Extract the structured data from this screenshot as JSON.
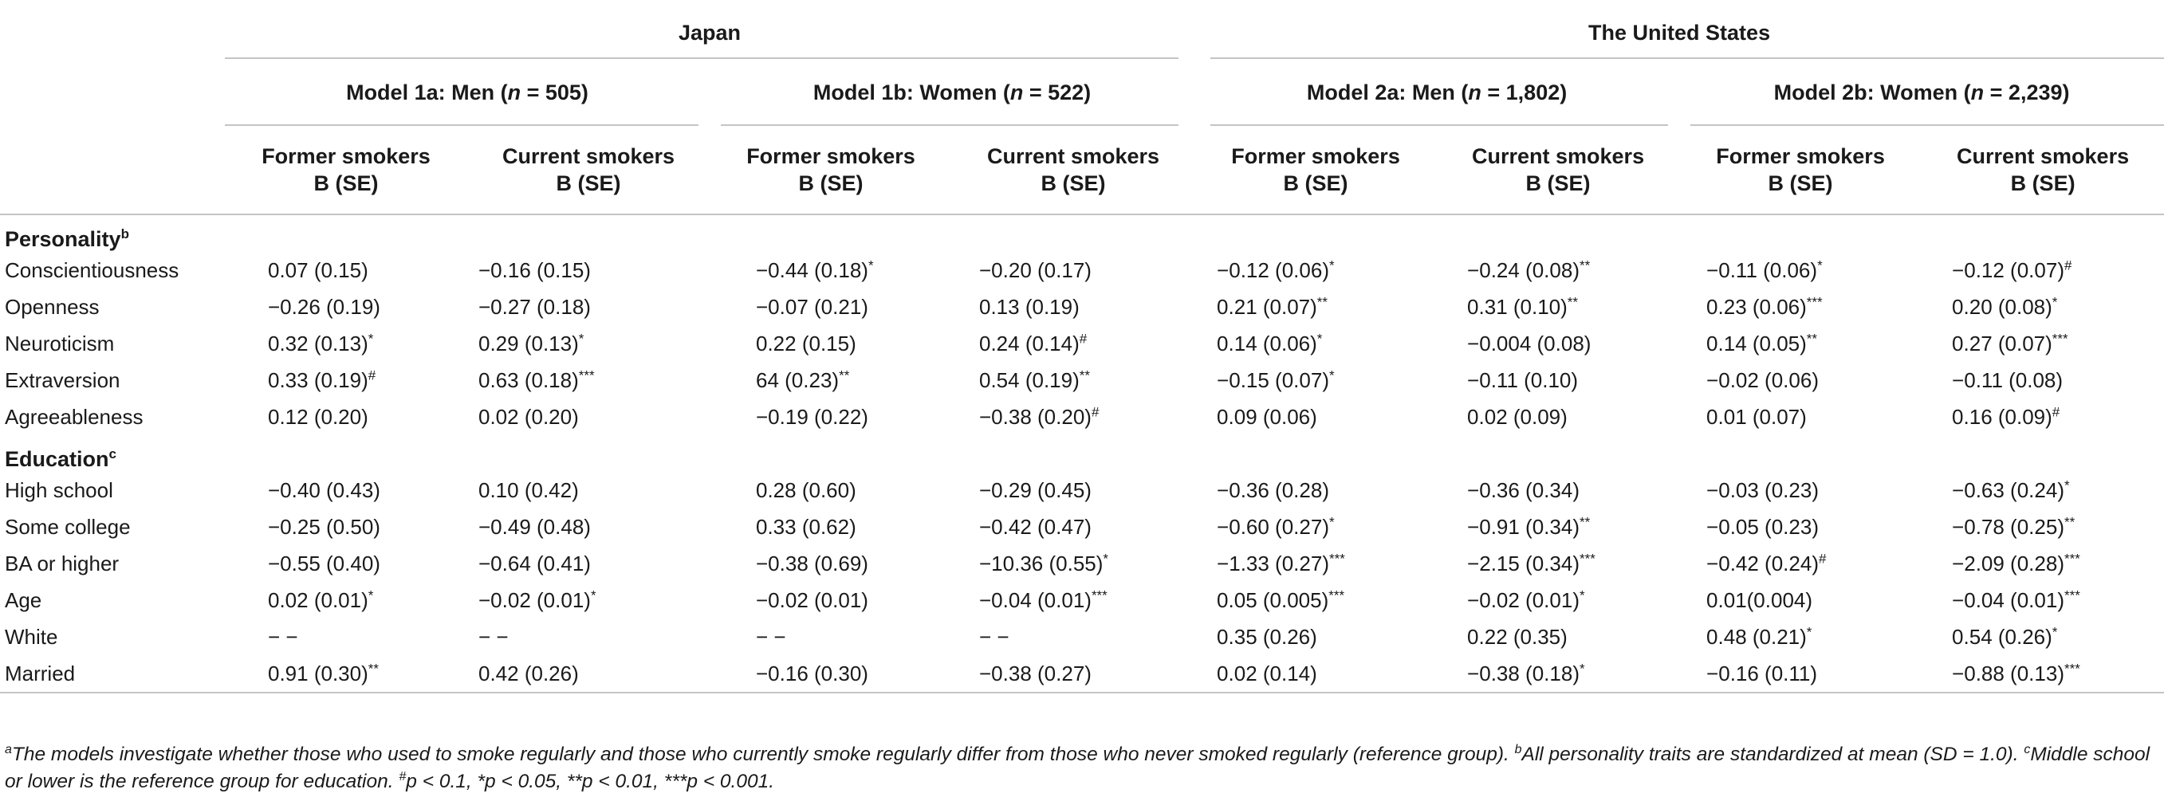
{
  "countries": [
    "Japan",
    "The United States"
  ],
  "models": [
    {
      "prefix": "Model 1a: Men (",
      "n_label": "n",
      "n_value": " = 505)"
    },
    {
      "prefix": "Model 1b: Women (",
      "n_label": "n",
      "n_value": " = 522)"
    },
    {
      "prefix": "Model 2a: Men (",
      "n_label": "n",
      "n_value": " = 1,802)"
    },
    {
      "prefix": "Model 2b: Women (",
      "n_label": "n",
      "n_value": " = 2,239)"
    }
  ],
  "column_headers": {
    "former": "Former smokers",
    "current": "Current smokers",
    "stat": "B (SE)"
  },
  "sections": [
    {
      "title": "Personality",
      "sup": "b",
      "rows": [
        {
          "label": "Conscientiousness",
          "values": [
            {
              "v": "0.07 (0.15)",
              "s": ""
            },
            {
              "v": "−0.16 (0.15)",
              "s": ""
            },
            {
              "v": "−0.44 (0.18)",
              "s": "*"
            },
            {
              "v": "−0.20 (0.17)",
              "s": ""
            },
            {
              "v": "−0.12 (0.06)",
              "s": "*"
            },
            {
              "v": "−0.24 (0.08)",
              "s": "**"
            },
            {
              "v": "−0.11 (0.06)",
              "s": "*"
            },
            {
              "v": "−0.12 (0.07)",
              "s": "#"
            }
          ]
        },
        {
          "label": "Openness",
          "values": [
            {
              "v": "−0.26 (0.19)",
              "s": ""
            },
            {
              "v": "−0.27 (0.18)",
              "s": ""
            },
            {
              "v": "−0.07 (0.21)",
              "s": ""
            },
            {
              "v": "0.13 (0.19)",
              "s": ""
            },
            {
              "v": "0.21 (0.07)",
              "s": "**"
            },
            {
              "v": "0.31 (0.10)",
              "s": "**"
            },
            {
              "v": "0.23 (0.06)",
              "s": "***"
            },
            {
              "v": "0.20 (0.08)",
              "s": "*"
            }
          ]
        },
        {
          "label": "Neuroticism",
          "values": [
            {
              "v": "0.32 (0.13)",
              "s": "*"
            },
            {
              "v": "0.29 (0.13)",
              "s": "*"
            },
            {
              "v": "0.22 (0.15)",
              "s": ""
            },
            {
              "v": "0.24 (0.14)",
              "s": "#"
            },
            {
              "v": "0.14 (0.06)",
              "s": "*"
            },
            {
              "v": "−0.004 (0.08)",
              "s": ""
            },
            {
              "v": "0.14 (0.05)",
              "s": "**"
            },
            {
              "v": "0.27 (0.07)",
              "s": "***"
            }
          ]
        },
        {
          "label": "Extraversion",
          "values": [
            {
              "v": "0.33 (0.19)",
              "s": "#"
            },
            {
              "v": "0.63 (0.18)",
              "s": "***"
            },
            {
              "v": "64 (0.23)",
              "s": "**"
            },
            {
              "v": "0.54 (0.19)",
              "s": "**"
            },
            {
              "v": "−0.15 (0.07)",
              "s": "*"
            },
            {
              "v": "−0.11 (0.10)",
              "s": ""
            },
            {
              "v": "−0.02 (0.06)",
              "s": ""
            },
            {
              "v": "−0.11 (0.08)",
              "s": ""
            }
          ]
        },
        {
          "label": "Agreeableness",
          "values": [
            {
              "v": "0.12 (0.20)",
              "s": ""
            },
            {
              "v": "0.02 (0.20)",
              "s": ""
            },
            {
              "v": "−0.19 (0.22)",
              "s": ""
            },
            {
              "v": "−0.38 (0.20)",
              "s": "#"
            },
            {
              "v": "0.09 (0.06)",
              "s": ""
            },
            {
              "v": "0.02 (0.09)",
              "s": ""
            },
            {
              "v": "0.01 (0.07)",
              "s": ""
            },
            {
              "v": "0.16 (0.09)",
              "s": "#"
            }
          ]
        }
      ]
    },
    {
      "title": "Education",
      "sup": "c",
      "rows": [
        {
          "label": "High school",
          "values": [
            {
              "v": "−0.40 (0.43)",
              "s": ""
            },
            {
              "v": "0.10 (0.42)",
              "s": ""
            },
            {
              "v": "0.28 (0.60)",
              "s": ""
            },
            {
              "v": "−0.29 (0.45)",
              "s": ""
            },
            {
              "v": "−0.36 (0.28)",
              "s": ""
            },
            {
              "v": "−0.36 (0.34)",
              "s": ""
            },
            {
              "v": "−0.03 (0.23)",
              "s": ""
            },
            {
              "v": "−0.63 (0.24)",
              "s": "*"
            }
          ]
        },
        {
          "label": "Some college",
          "values": [
            {
              "v": "−0.25 (0.50)",
              "s": ""
            },
            {
              "v": "−0.49 (0.48)",
              "s": ""
            },
            {
              "v": "0.33 (0.62)",
              "s": ""
            },
            {
              "v": "−0.42 (0.47)",
              "s": ""
            },
            {
              "v": "−0.60 (0.27)",
              "s": "*"
            },
            {
              "v": "−0.91 (0.34)",
              "s": "**"
            },
            {
              "v": "−0.05 (0.23)",
              "s": ""
            },
            {
              "v": "−0.78 (0.25)",
              "s": "**"
            }
          ]
        },
        {
          "label": "BA or higher",
          "values": [
            {
              "v": "−0.55 (0.40)",
              "s": ""
            },
            {
              "v": "−0.64 (0.41)",
              "s": ""
            },
            {
              "v": "−0.38 (0.69)",
              "s": ""
            },
            {
              "v": "−10.36 (0.55)",
              "s": "*"
            },
            {
              "v": "−1.33 (0.27)",
              "s": "***"
            },
            {
              "v": "−2.15 (0.34)",
              "s": "***"
            },
            {
              "v": "−0.42 (0.24)",
              "s": "#"
            },
            {
              "v": "−2.09 (0.28)",
              "s": "***"
            }
          ]
        },
        {
          "label": "Age",
          "values": [
            {
              "v": "0.02 (0.01)",
              "s": "*"
            },
            {
              "v": "−0.02 (0.01)",
              "s": "*"
            },
            {
              "v": "−0.02 (0.01)",
              "s": ""
            },
            {
              "v": "−0.04 (0.01)",
              "s": "***"
            },
            {
              "v": "0.05 (0.005)",
              "s": "***"
            },
            {
              "v": "−0.02 (0.01)",
              "s": "*"
            },
            {
              "v": "0.01(0.004)",
              "s": ""
            },
            {
              "v": "−0.04 (0.01)",
              "s": "***"
            }
          ]
        },
        {
          "label": "White",
          "values": [
            {
              "v": "− −",
              "s": ""
            },
            {
              "v": "− −",
              "s": ""
            },
            {
              "v": "− −",
              "s": ""
            },
            {
              "v": "− −",
              "s": ""
            },
            {
              "v": "0.35 (0.26)",
              "s": ""
            },
            {
              "v": "0.22 (0.35)",
              "s": ""
            },
            {
              "v": "0.48 (0.21)",
              "s": "*"
            },
            {
              "v": "0.54 (0.26)",
              "s": "*"
            }
          ]
        },
        {
          "label": "Married",
          "values": [
            {
              "v": "0.91 (0.30)",
              "s": "**"
            },
            {
              "v": "0.42 (0.26)",
              "s": ""
            },
            {
              "v": "−0.16 (0.30)",
              "s": ""
            },
            {
              "v": "−0.38 (0.27)",
              "s": ""
            },
            {
              "v": "0.02 (0.14)",
              "s": ""
            },
            {
              "v": "−0.38 (0.18)",
              "s": "*"
            },
            {
              "v": "−0.16 (0.11)",
              "s": ""
            },
            {
              "v": "−0.88 (0.13)",
              "s": "***"
            }
          ]
        }
      ]
    }
  ],
  "footnote": {
    "a_sup": "a",
    "a_text": "The models investigate whether those who used to smoke regularly and those who currently smoke regularly differ from those who never smoked regularly (reference group). ",
    "b_sup": "b",
    "b_text": "All personality traits are standardized at mean (SD = 1.0). ",
    "c_sup": "c",
    "c_text": "Middle school or lower is the reference group for education. ",
    "sig_hash_sup": "#",
    "sig_text": "p < 0.1, *p < 0.05, **p < 0.01, ***p < 0.001."
  }
}
